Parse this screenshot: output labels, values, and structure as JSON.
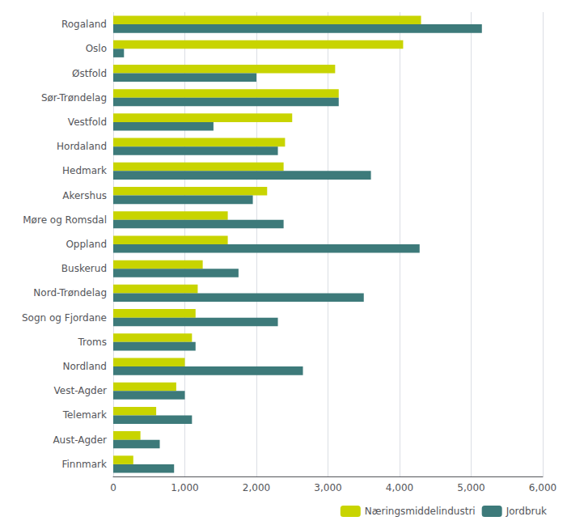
{
  "chart_data": {
    "type": "bar",
    "orientation": "horizontal",
    "categories": [
      "Rogaland",
      "Oslo",
      "Østfold",
      "Sør-Trøndelag",
      "Vestfold",
      "Hordaland",
      "Hedmark",
      "Akershus",
      "Møre og Romsdal",
      "Oppland",
      "Buskerud",
      "Nord-Trøndelag",
      "Sogn og Fjordane",
      "Troms",
      "Nordland",
      "Vest-Agder",
      "Telemark",
      "Aust-Agder",
      "Finnmark"
    ],
    "series": [
      {
        "name": "Næringsmiddelindustri",
        "color": "#c8d400",
        "values": [
          4300,
          4050,
          3100,
          3150,
          2500,
          2400,
          2380,
          2150,
          1600,
          1600,
          1250,
          1180,
          1150,
          1100,
          1000,
          880,
          600,
          380,
          280
        ]
      },
      {
        "name": "Jordbruk",
        "color": "#3d7a7a",
        "values": [
          5150,
          150,
          2000,
          3150,
          1400,
          2300,
          3600,
          1950,
          2380,
          4280,
          1750,
          3500,
          2300,
          1150,
          2650,
          1000,
          1100,
          650,
          850
        ]
      }
    ],
    "xlim": [
      0,
      6000
    ],
    "xticks": [
      0,
      1000,
      2000,
      3000,
      4000,
      5000,
      6000
    ],
    "grid": true,
    "legend": "lower right"
  }
}
